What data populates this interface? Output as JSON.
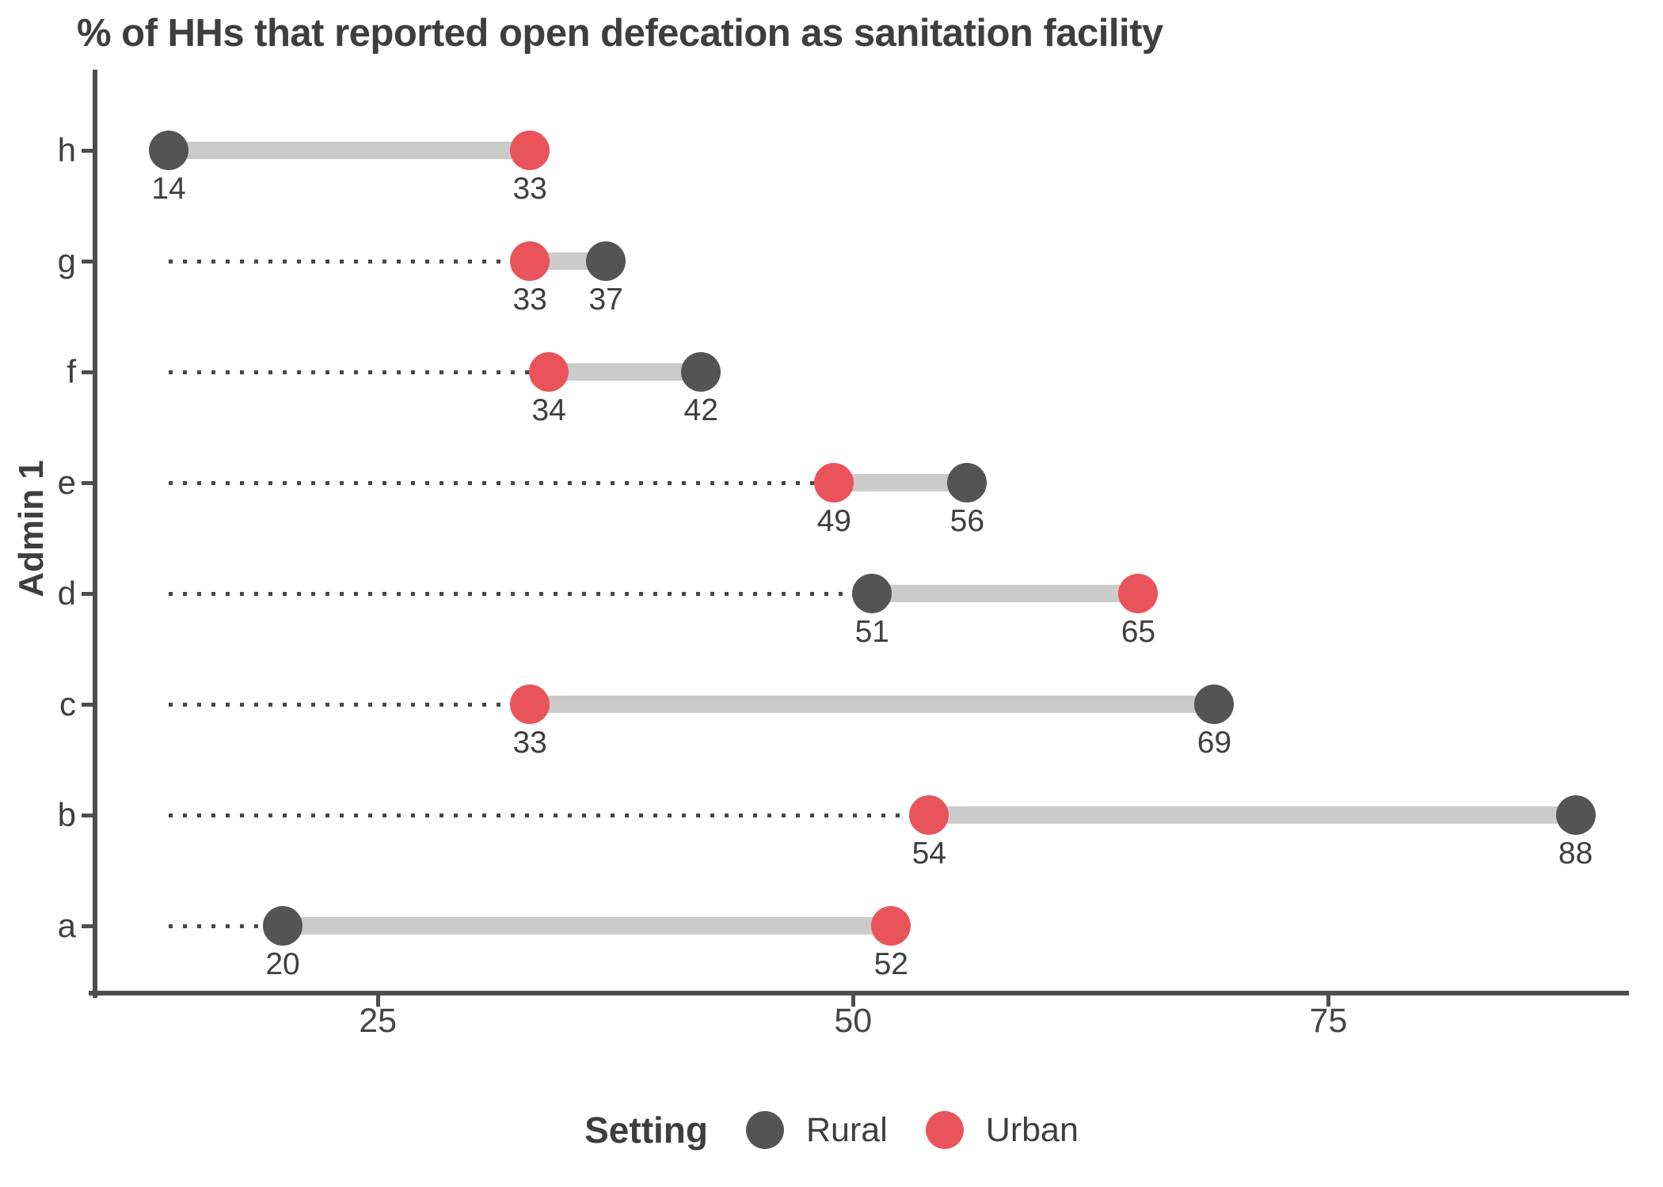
{
  "title": "% of HHs that reported open defecation as sanitation facility",
  "y_axis_title": "Admin 1",
  "legend": {
    "title": "Setting",
    "items": [
      {
        "label": "Rural",
        "color": "#545454"
      },
      {
        "label": "Urban",
        "color": "#e8545a"
      }
    ]
  },
  "colors": {
    "rural": "#545454",
    "urban": "#e8545a",
    "connector": "#cbcbcb",
    "dotted_line": "#474747",
    "axis": "#4d4d4d",
    "text": "#3f3f3f"
  },
  "chart_data": {
    "type": "dumbbell",
    "orientation": "horizontal",
    "title": "% of HHs that reported open defecation as sanitation facility",
    "xlabel": "",
    "ylabel": "Admin 1",
    "categories": [
      "h",
      "g",
      "f",
      "e",
      "d",
      "c",
      "b",
      "a"
    ],
    "series": [
      {
        "name": "Rural",
        "color": "#545454",
        "values": [
          14,
          37,
          42,
          56,
          51,
          69,
          88,
          20
        ]
      },
      {
        "name": "Urban",
        "color": "#e8545a",
        "values": [
          33,
          33,
          34,
          49,
          65,
          33,
          54,
          52
        ]
      }
    ],
    "x_ticks": [
      25,
      50,
      75
    ],
    "xlim": [
      10.25,
      90.6
    ],
    "dotted_line_start": 14,
    "grid": false,
    "legend_position": "bottom",
    "legend_title": "Setting"
  }
}
